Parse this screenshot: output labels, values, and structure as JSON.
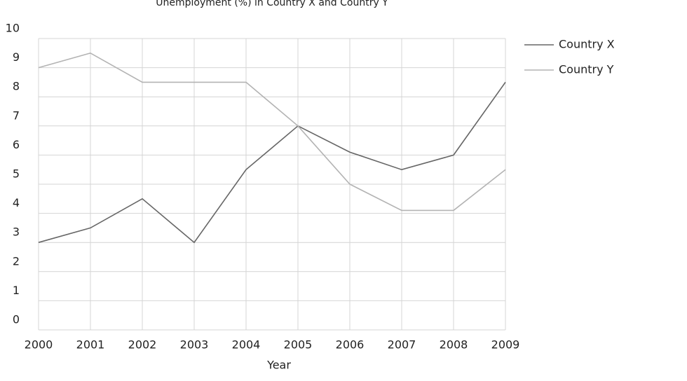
{
  "chart_data": {
    "type": "line",
    "title": "Unemployment (%) in Country X and Country Y",
    "x_label": "Year",
    "x": [
      2000,
      2001,
      2002,
      2003,
      2004,
      2005,
      2006,
      2007,
      2008,
      2009
    ],
    "xlim": [
      2000,
      2009
    ],
    "xticks": [
      2000,
      2001,
      2002,
      2003,
      2004,
      2005,
      2006,
      2007,
      2008,
      2009
    ],
    "ylim": [
      0,
      10
    ],
    "yticks": [
      0,
      1,
      2,
      3,
      4,
      5,
      6,
      7,
      8,
      9,
      10
    ],
    "grid": true,
    "legend": "right",
    "series": [
      {
        "name": "Country X",
        "color": "#666666",
        "values": [
          3,
          3.5,
          4.5,
          3,
          5.5,
          7,
          6.1,
          5.5,
          6,
          8.5
        ]
      },
      {
        "name": "Country Y",
        "color": "#b3b3b3",
        "values": [
          9,
          9.5,
          8.5,
          8.5,
          8.5,
          7,
          5,
          4.1,
          4.1,
          5.5
        ]
      }
    ]
  }
}
